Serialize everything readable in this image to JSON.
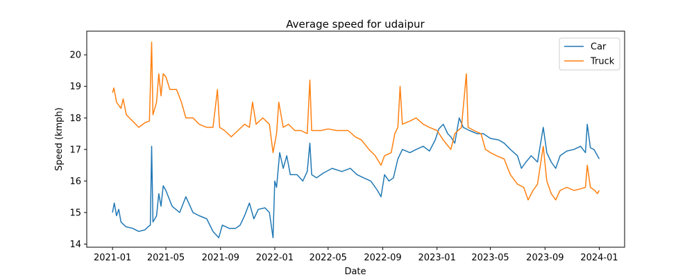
{
  "chart_data": {
    "type": "line",
    "title": "Average speed for udaipur",
    "xlabel": "Date",
    "ylabel": "Speed (kmph)",
    "x_ticks": [
      "2021-01",
      "2021-05",
      "2021-09",
      "2022-01",
      "2022-05",
      "2022-09",
      "2023-01",
      "2023-05",
      "2023-09",
      "2024-01"
    ],
    "y_ticks": [
      14,
      15,
      16,
      17,
      18,
      19,
      20
    ],
    "xlim": [
      "2020-11-04",
      "2024-02-27"
    ],
    "ylim": [
      13.9,
      20.75
    ],
    "grid": false,
    "legend_position": "top-right",
    "series": [
      {
        "name": "Car",
        "color": "#1f77b4",
        "points": [
          [
            "2021-01-01",
            15.0
          ],
          [
            "2021-01-05",
            15.3
          ],
          [
            "2021-01-10",
            14.9
          ],
          [
            "2021-01-15",
            15.1
          ],
          [
            "2021-01-20",
            14.7
          ],
          [
            "2021-01-31",
            14.55
          ],
          [
            "2021-02-15",
            14.5
          ],
          [
            "2021-03-01",
            14.4
          ],
          [
            "2021-03-15",
            14.45
          ],
          [
            "2021-03-22",
            14.55
          ],
          [
            "2021-03-27",
            14.6
          ],
          [
            "2021-03-30",
            17.1
          ],
          [
            "2021-04-02",
            14.7
          ],
          [
            "2021-04-10",
            14.9
          ],
          [
            "2021-04-15",
            15.6
          ],
          [
            "2021-04-20",
            15.2
          ],
          [
            "2021-04-25",
            15.85
          ],
          [
            "2021-05-01",
            15.7
          ],
          [
            "2021-05-15",
            15.2
          ],
          [
            "2021-06-01",
            15.0
          ],
          [
            "2021-06-15",
            15.5
          ],
          [
            "2021-07-01",
            15.0
          ],
          [
            "2021-07-15",
            14.9
          ],
          [
            "2021-08-01",
            14.8
          ],
          [
            "2021-08-15",
            14.4
          ],
          [
            "2021-08-28",
            14.2
          ],
          [
            "2021-09-05",
            14.6
          ],
          [
            "2021-09-20",
            14.5
          ],
          [
            "2021-10-05",
            14.5
          ],
          [
            "2021-10-15",
            14.6
          ],
          [
            "2021-10-25",
            14.9
          ],
          [
            "2021-11-05",
            15.3
          ],
          [
            "2021-11-15",
            14.8
          ],
          [
            "2021-11-25",
            15.1
          ],
          [
            "2021-12-10",
            15.15
          ],
          [
            "2021-12-20",
            15.0
          ],
          [
            "2021-12-28",
            14.2
          ],
          [
            "2022-01-01",
            16.0
          ],
          [
            "2022-01-05",
            15.8
          ],
          [
            "2022-01-12",
            16.9
          ],
          [
            "2022-01-20",
            16.4
          ],
          [
            "2022-01-28",
            16.8
          ],
          [
            "2022-02-05",
            16.2
          ],
          [
            "2022-02-20",
            16.2
          ],
          [
            "2022-03-05",
            16.0
          ],
          [
            "2022-03-15",
            16.3
          ],
          [
            "2022-03-21",
            17.2
          ],
          [
            "2022-03-25",
            16.2
          ],
          [
            "2022-04-05",
            16.1
          ],
          [
            "2022-04-20",
            16.25
          ],
          [
            "2022-05-10",
            16.4
          ],
          [
            "2022-06-01",
            16.3
          ],
          [
            "2022-06-20",
            16.4
          ],
          [
            "2022-07-05",
            16.2
          ],
          [
            "2022-07-20",
            16.1
          ],
          [
            "2022-08-05",
            16.0
          ],
          [
            "2022-08-20",
            15.7
          ],
          [
            "2022-08-28",
            15.5
          ],
          [
            "2022-09-05",
            16.2
          ],
          [
            "2022-09-15",
            16.0
          ],
          [
            "2022-09-25",
            16.1
          ],
          [
            "2022-10-05",
            16.7
          ],
          [
            "2022-10-15",
            17.0
          ],
          [
            "2022-11-01",
            16.9
          ],
          [
            "2022-11-15",
            17.0
          ],
          [
            "2022-12-01",
            17.1
          ],
          [
            "2022-12-15",
            16.95
          ],
          [
            "2022-12-28",
            17.3
          ],
          [
            "2023-01-05",
            17.65
          ],
          [
            "2023-01-15",
            17.8
          ],
          [
            "2023-01-25",
            17.5
          ],
          [
            "2023-02-01",
            17.4
          ],
          [
            "2023-02-10",
            17.2
          ],
          [
            "2023-02-20",
            18.0
          ],
          [
            "2023-03-01",
            17.7
          ],
          [
            "2023-03-15",
            17.6
          ],
          [
            "2023-04-01",
            17.5
          ],
          [
            "2023-04-15",
            17.5
          ],
          [
            "2023-05-01",
            17.35
          ],
          [
            "2023-05-20",
            17.3
          ],
          [
            "2023-06-01",
            17.2
          ],
          [
            "2023-06-15",
            17.0
          ],
          [
            "2023-07-01",
            16.8
          ],
          [
            "2023-07-10",
            16.4
          ],
          [
            "2023-07-20",
            16.6
          ],
          [
            "2023-08-01",
            16.8
          ],
          [
            "2023-08-15",
            16.6
          ],
          [
            "2023-08-28",
            17.7
          ],
          [
            "2023-09-05",
            16.9
          ],
          [
            "2023-09-15",
            16.6
          ],
          [
            "2023-09-25",
            16.4
          ],
          [
            "2023-10-05",
            16.8
          ],
          [
            "2023-10-20",
            16.95
          ],
          [
            "2023-11-05",
            17.0
          ],
          [
            "2023-11-20",
            17.1
          ],
          [
            "2023-12-01",
            16.9
          ],
          [
            "2023-12-05",
            17.8
          ],
          [
            "2023-12-12",
            17.05
          ],
          [
            "2023-12-20",
            17.0
          ],
          [
            "2023-12-28",
            16.8
          ],
          [
            "2024-01-01",
            16.7
          ]
        ]
      },
      {
        "name": "Truck",
        "color": "#ff7f0e",
        "points": [
          [
            "2021-01-01",
            18.8
          ],
          [
            "2021-01-04",
            18.95
          ],
          [
            "2021-01-10",
            18.5
          ],
          [
            "2021-01-20",
            18.3
          ],
          [
            "2021-01-25",
            18.6
          ],
          [
            "2021-02-01",
            18.1
          ],
          [
            "2021-02-15",
            17.9
          ],
          [
            "2021-03-01",
            17.7
          ],
          [
            "2021-03-15",
            17.85
          ],
          [
            "2021-03-25",
            17.9
          ],
          [
            "2021-03-30",
            20.4
          ],
          [
            "2021-04-02",
            18.1
          ],
          [
            "2021-04-10",
            18.5
          ],
          [
            "2021-04-15",
            19.4
          ],
          [
            "2021-04-20",
            18.7
          ],
          [
            "2021-04-25",
            19.4
          ],
          [
            "2021-05-01",
            19.3
          ],
          [
            "2021-05-10",
            18.9
          ],
          [
            "2021-05-25",
            18.9
          ],
          [
            "2021-06-05",
            18.5
          ],
          [
            "2021-06-15",
            18.0
          ],
          [
            "2021-07-01",
            18.0
          ],
          [
            "2021-07-15",
            17.8
          ],
          [
            "2021-08-01",
            17.7
          ],
          [
            "2021-08-15",
            17.7
          ],
          [
            "2021-08-25",
            18.9
          ],
          [
            "2021-08-30",
            17.7
          ],
          [
            "2021-09-10",
            17.6
          ],
          [
            "2021-09-25",
            17.4
          ],
          [
            "2021-10-10",
            17.6
          ],
          [
            "2021-10-25",
            17.8
          ],
          [
            "2021-11-05",
            17.7
          ],
          [
            "2021-11-12",
            18.5
          ],
          [
            "2021-11-20",
            17.8
          ],
          [
            "2021-12-05",
            18.0
          ],
          [
            "2021-12-20",
            17.8
          ],
          [
            "2021-12-28",
            16.9
          ],
          [
            "2022-01-05",
            17.5
          ],
          [
            "2022-01-10",
            18.5
          ],
          [
            "2022-01-20",
            17.7
          ],
          [
            "2022-02-01",
            17.8
          ],
          [
            "2022-02-15",
            17.6
          ],
          [
            "2022-03-01",
            17.6
          ],
          [
            "2022-03-15",
            17.5
          ],
          [
            "2022-03-21",
            19.2
          ],
          [
            "2022-03-25",
            17.6
          ],
          [
            "2022-04-15",
            17.6
          ],
          [
            "2022-05-01",
            17.65
          ],
          [
            "2022-05-20",
            17.6
          ],
          [
            "2022-06-15",
            17.6
          ],
          [
            "2022-07-01",
            17.4
          ],
          [
            "2022-07-15",
            17.3
          ],
          [
            "2022-08-01",
            17.0
          ],
          [
            "2022-08-15",
            16.8
          ],
          [
            "2022-08-28",
            16.5
          ],
          [
            "2022-09-05",
            16.8
          ],
          [
            "2022-09-20",
            16.9
          ],
          [
            "2022-09-28",
            17.5
          ],
          [
            "2022-10-05",
            17.7
          ],
          [
            "2022-10-10",
            19.0
          ],
          [
            "2022-10-15",
            17.8
          ],
          [
            "2022-11-01",
            17.9
          ],
          [
            "2022-11-15",
            18.0
          ],
          [
            "2022-12-01",
            17.8
          ],
          [
            "2022-12-15",
            17.7
          ],
          [
            "2023-01-01",
            17.6
          ],
          [
            "2023-01-15",
            17.3
          ],
          [
            "2023-02-01",
            17.0
          ],
          [
            "2023-02-10",
            17.5
          ],
          [
            "2023-02-25",
            17.7
          ],
          [
            "2023-03-08",
            19.4
          ],
          [
            "2023-03-12",
            17.7
          ],
          [
            "2023-03-25",
            17.6
          ],
          [
            "2023-04-10",
            17.5
          ],
          [
            "2023-04-20",
            17.0
          ],
          [
            "2023-05-01",
            16.9
          ],
          [
            "2023-05-15",
            16.8
          ],
          [
            "2023-06-01",
            16.7
          ],
          [
            "2023-06-15",
            16.2
          ],
          [
            "2023-07-01",
            15.9
          ],
          [
            "2023-07-15",
            15.8
          ],
          [
            "2023-07-25",
            15.4
          ],
          [
            "2023-08-05",
            15.7
          ],
          [
            "2023-08-15",
            15.9
          ],
          [
            "2023-08-28",
            17.1
          ],
          [
            "2023-09-05",
            16.0
          ],
          [
            "2023-09-15",
            15.6
          ],
          [
            "2023-09-25",
            15.4
          ],
          [
            "2023-10-05",
            15.7
          ],
          [
            "2023-10-20",
            15.8
          ],
          [
            "2023-11-05",
            15.7
          ],
          [
            "2023-11-20",
            15.75
          ],
          [
            "2023-12-01",
            15.8
          ],
          [
            "2023-12-05",
            16.5
          ],
          [
            "2023-12-12",
            15.8
          ],
          [
            "2023-12-22",
            15.7
          ],
          [
            "2023-12-28",
            15.6
          ],
          [
            "2024-01-01",
            15.7
          ]
        ]
      }
    ]
  }
}
